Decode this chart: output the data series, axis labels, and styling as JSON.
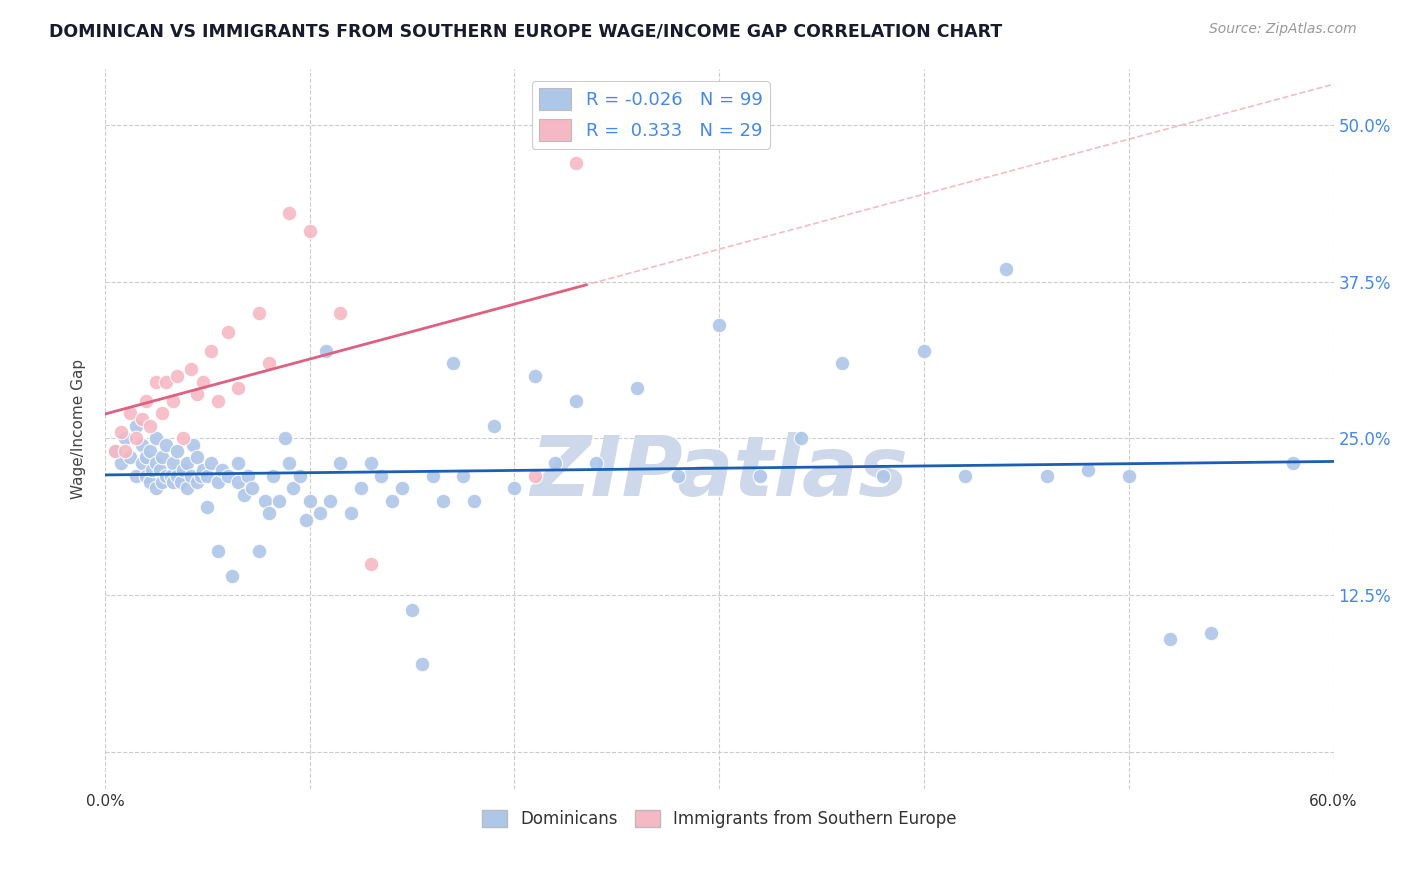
{
  "title": "DOMINICAN VS IMMIGRANTS FROM SOUTHERN EUROPE WAGE/INCOME GAP CORRELATION CHART",
  "source": "Source: ZipAtlas.com",
  "ylabel": "Wage/Income Gap",
  "xlim": [
    0.0,
    0.6
  ],
  "ylim": [
    -0.03,
    0.545
  ],
  "xticks": [
    0.0,
    0.1,
    0.2,
    0.3,
    0.4,
    0.5,
    0.6
  ],
  "yticks": [
    0.0,
    0.125,
    0.25,
    0.375,
    0.5
  ],
  "blue_color": "#aec6e8",
  "pink_color": "#f5b8c4",
  "trend_blue_color": "#1a5fb4",
  "trend_pink_color": "#e06080",
  "trend_pink_dash_color": "#f0a0b0",
  "watermark_color": "#cdd8ea",
  "background_color": "#ffffff",
  "grid_color": "#cccccc",
  "title_color": "#1a1a2e",
  "right_tick_color": "#4488ee",
  "source_color": "#999999",
  "dominicans_x": [
    0.005,
    0.008,
    0.01,
    0.012,
    0.015,
    0.015,
    0.018,
    0.018,
    0.02,
    0.02,
    0.022,
    0.022,
    0.023,
    0.025,
    0.025,
    0.025,
    0.027,
    0.028,
    0.028,
    0.03,
    0.03,
    0.032,
    0.033,
    0.033,
    0.035,
    0.035,
    0.037,
    0.038,
    0.04,
    0.04,
    0.042,
    0.043,
    0.045,
    0.045,
    0.047,
    0.048,
    0.05,
    0.05,
    0.052,
    0.055,
    0.055,
    0.057,
    0.06,
    0.062,
    0.065,
    0.065,
    0.068,
    0.07,
    0.072,
    0.075,
    0.078,
    0.08,
    0.082,
    0.085,
    0.088,
    0.09,
    0.092,
    0.095,
    0.098,
    0.1,
    0.105,
    0.108,
    0.11,
    0.115,
    0.12,
    0.125,
    0.13,
    0.135,
    0.14,
    0.145,
    0.15,
    0.155,
    0.16,
    0.165,
    0.17,
    0.175,
    0.18,
    0.19,
    0.2,
    0.21,
    0.22,
    0.23,
    0.24,
    0.26,
    0.28,
    0.3,
    0.32,
    0.34,
    0.36,
    0.38,
    0.4,
    0.42,
    0.44,
    0.46,
    0.48,
    0.5,
    0.52,
    0.54,
    0.58
  ],
  "dominicans_y": [
    0.24,
    0.23,
    0.25,
    0.235,
    0.22,
    0.26,
    0.23,
    0.245,
    0.22,
    0.235,
    0.215,
    0.24,
    0.225,
    0.23,
    0.21,
    0.25,
    0.225,
    0.215,
    0.235,
    0.22,
    0.245,
    0.22,
    0.215,
    0.23,
    0.22,
    0.24,
    0.215,
    0.225,
    0.21,
    0.23,
    0.22,
    0.245,
    0.215,
    0.235,
    0.22,
    0.225,
    0.195,
    0.22,
    0.23,
    0.215,
    0.16,
    0.225,
    0.22,
    0.14,
    0.215,
    0.23,
    0.205,
    0.22,
    0.21,
    0.16,
    0.2,
    0.19,
    0.22,
    0.2,
    0.25,
    0.23,
    0.21,
    0.22,
    0.185,
    0.2,
    0.19,
    0.32,
    0.2,
    0.23,
    0.19,
    0.21,
    0.23,
    0.22,
    0.2,
    0.21,
    0.113,
    0.07,
    0.22,
    0.2,
    0.31,
    0.22,
    0.2,
    0.26,
    0.21,
    0.3,
    0.23,
    0.28,
    0.23,
    0.29,
    0.22,
    0.34,
    0.22,
    0.25,
    0.31,
    0.22,
    0.32,
    0.22,
    0.385,
    0.22,
    0.225,
    0.22,
    0.09,
    0.095,
    0.23
  ],
  "southern_x": [
    0.005,
    0.008,
    0.01,
    0.012,
    0.015,
    0.018,
    0.02,
    0.022,
    0.025,
    0.028,
    0.03,
    0.033,
    0.035,
    0.038,
    0.042,
    0.045,
    0.048,
    0.052,
    0.055,
    0.06,
    0.065,
    0.075,
    0.08,
    0.09,
    0.1,
    0.115,
    0.13,
    0.21,
    0.23
  ],
  "southern_y": [
    0.24,
    0.255,
    0.24,
    0.27,
    0.25,
    0.265,
    0.28,
    0.26,
    0.295,
    0.27,
    0.295,
    0.28,
    0.3,
    0.25,
    0.305,
    0.285,
    0.295,
    0.32,
    0.28,
    0.335,
    0.29,
    0.35,
    0.31,
    0.43,
    0.415,
    0.35,
    0.15,
    0.22,
    0.47
  ],
  "legend_R_blue": "R = -0.026",
  "legend_N_blue": "N = 99",
  "legend_R_pink": "R =  0.333",
  "legend_N_pink": "N = 29"
}
